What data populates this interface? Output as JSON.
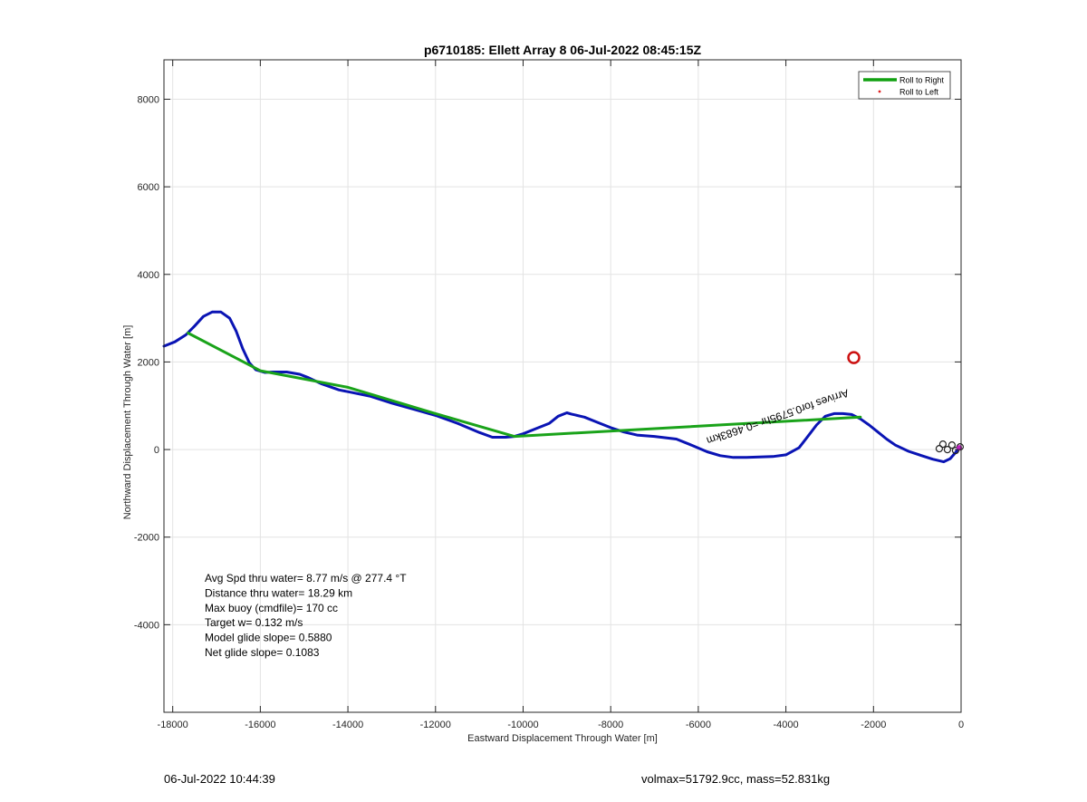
{
  "chart_data": {
    "type": "line",
    "title": "p6710185: Ellett Array 8 06-Jul-2022 08:45:15Z",
    "xlabel": "Eastward Displacement Through Water [m]",
    "ylabel": "Northward Displacement Through Water [m]",
    "xlim": [
      -18200,
      0
    ],
    "ylim": [
      -6000,
      8900
    ],
    "xticks": [
      -18000,
      -16000,
      -14000,
      -12000,
      -10000,
      -8000,
      -6000,
      -4000,
      -2000,
      0
    ],
    "yticks": [
      -4000,
      -2000,
      0,
      2000,
      4000,
      6000,
      8000
    ],
    "grid": true,
    "legend_position": "top-right",
    "legend": [
      {
        "label": "Roll to Right",
        "color": "#10a010",
        "marker": "line"
      },
      {
        "label": "Roll to Left",
        "color": "#e02020",
        "marker": "dot"
      }
    ],
    "series": [
      {
        "name": "Roll to Right",
        "color": "#1aa31a",
        "x": [
          -17650,
          -16000,
          -14000,
          -12000,
          -10200,
          -2300
        ],
        "y": [
          2660,
          1800,
          1420,
          820,
          300,
          740
        ]
      },
      {
        "color": "#0a14b4",
        "x": [
          -18200,
          -17950,
          -17700,
          -17500,
          -17300,
          -17100,
          -16900,
          -16700,
          -16550,
          -16400,
          -16250,
          -16100,
          -15900,
          -15700,
          -15400,
          -15100,
          -14900,
          -14600,
          -14200,
          -13900,
          -13500,
          -13000,
          -12500,
          -12000,
          -11500,
          -11000,
          -10700,
          -10400,
          -10200,
          -10000,
          -9700,
          -9400,
          -9200,
          -9000,
          -8900,
          -8600,
          -8300,
          -8000,
          -7700,
          -7400,
          -7000,
          -6500,
          -6200,
          -5800,
          -5500,
          -5200,
          -4900,
          -4600,
          -4300,
          -4000,
          -3700,
          -3500,
          -3300,
          -3100,
          -2900,
          -2700,
          -2500,
          -2300,
          -2100,
          -1900,
          -1700,
          -1500,
          -1200,
          -900,
          -650,
          -400,
          -250,
          -120,
          -40
        ],
        "y": [
          2360,
          2460,
          2620,
          2820,
          3040,
          3140,
          3140,
          3000,
          2700,
          2300,
          1980,
          1820,
          1760,
          1770,
          1770,
          1720,
          1640,
          1500,
          1360,
          1300,
          1220,
          1060,
          920,
          780,
          600,
          390,
          280,
          280,
          300,
          360,
          480,
          600,
          760,
          840,
          810,
          740,
          620,
          500,
          400,
          330,
          300,
          240,
          120,
          -50,
          -140,
          -180,
          -180,
          -170,
          -160,
          -120,
          40,
          300,
          560,
          760,
          820,
          820,
          800,
          700,
          560,
          400,
          240,
          100,
          -40,
          -140,
          -220,
          -280,
          -210,
          -60,
          60
        ]
      }
    ],
    "annotation": {
      "text": "Arrives for0.5795hr =0.4683km",
      "x": -2600,
      "y": 1380,
      "rotation_deg": 161,
      "label_color": "#000000"
    },
    "target_marker": {
      "x": -2450,
      "y": 2100,
      "color": "#cc1111"
    },
    "stats": [
      "Avg Spd thru water=  8.77 m/s @ 277.4 °T",
      "Distance thru water= 18.29 km",
      "Max buoy (cmdfile)= 170 cc",
      "Target w= 0.132 m/s",
      "Model glide slope= 0.5880",
      "Net glide slope= 0.1083"
    ]
  },
  "footer": {
    "timestamp": "06-Jul-2022 10:44:39",
    "volmax": "volmax=51792.9cc, mass=52.831kg"
  }
}
